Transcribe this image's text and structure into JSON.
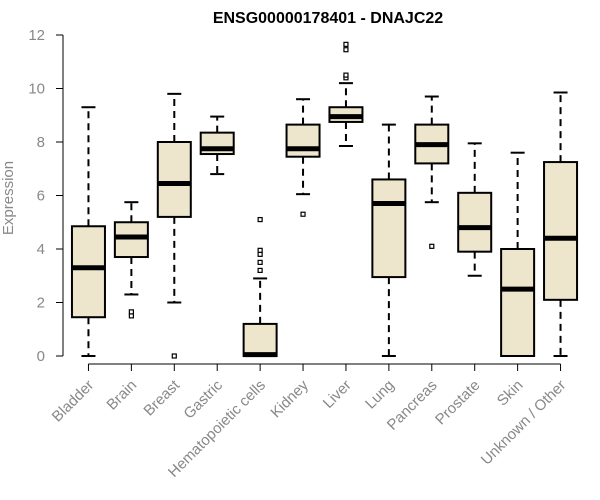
{
  "chart_data": {
    "type": "boxplot",
    "title": "ENSG00000178401 - DNAJC22",
    "xlabel": "",
    "ylabel": "Expression",
    "ylim": [
      0,
      12
    ],
    "yticks": [
      0,
      2,
      4,
      6,
      8,
      10,
      12
    ],
    "grid": false,
    "colors": {
      "box_fill": "#ede6cc",
      "box_stroke": "#000000",
      "axis": "#000000",
      "tick_text": "#888888",
      "title": "#000000"
    },
    "categories": [
      "Bladder",
      "Brain",
      "Breast",
      "Gastric",
      "Hematopoietic cells",
      "Kidney",
      "Liver",
      "Lung",
      "Pancreas",
      "Prostate",
      "Skin",
      "Unknown / Other"
    ],
    "boxes": [
      {
        "category": "Bladder",
        "whisker_low": 0.0,
        "q1": 1.45,
        "median": 3.3,
        "q3": 4.85,
        "whisker_high": 9.3,
        "outliers": []
      },
      {
        "category": "Brain",
        "whisker_low": 2.3,
        "q1": 3.7,
        "median": 4.45,
        "q3": 5.0,
        "whisker_high": 5.75,
        "outliers": [
          1.5,
          1.65
        ]
      },
      {
        "category": "Breast",
        "whisker_low": 2.0,
        "q1": 5.2,
        "median": 6.45,
        "q3": 8.0,
        "whisker_high": 9.8,
        "outliers": [
          0.0
        ]
      },
      {
        "category": "Gastric",
        "whisker_low": 6.8,
        "q1": 7.55,
        "median": 7.75,
        "q3": 8.35,
        "whisker_high": 8.95,
        "outliers": []
      },
      {
        "category": "Hematopoietic cells",
        "whisker_low": 0.0,
        "q1": 0.0,
        "median": 0.05,
        "q3": 1.2,
        "whisker_high": 2.9,
        "outliers": [
          3.2,
          3.5,
          3.8,
          3.95,
          5.1
        ]
      },
      {
        "category": "Kidney",
        "whisker_low": 6.05,
        "q1": 7.45,
        "median": 7.75,
        "q3": 8.65,
        "whisker_high": 9.6,
        "outliers": [
          5.3
        ]
      },
      {
        "category": "Liver",
        "whisker_low": 7.85,
        "q1": 8.75,
        "median": 8.95,
        "q3": 9.3,
        "whisker_high": 10.2,
        "outliers": [
          10.4,
          10.5,
          11.45,
          11.65
        ]
      },
      {
        "category": "Lung",
        "whisker_low": 0.0,
        "q1": 2.95,
        "median": 5.7,
        "q3": 6.6,
        "whisker_high": 8.65,
        "outliers": []
      },
      {
        "category": "Pancreas",
        "whisker_low": 5.75,
        "q1": 7.2,
        "median": 7.9,
        "q3": 8.65,
        "whisker_high": 9.7,
        "outliers": [
          4.1
        ]
      },
      {
        "category": "Prostate",
        "whisker_low": 3.0,
        "q1": 3.9,
        "median": 4.8,
        "q3": 6.1,
        "whisker_high": 7.95,
        "outliers": []
      },
      {
        "category": "Skin",
        "whisker_low": 0.0,
        "q1": 0.0,
        "median": 2.5,
        "q3": 4.0,
        "whisker_high": 7.6,
        "outliers": []
      },
      {
        "category": "Unknown / Other",
        "whisker_low": 0.0,
        "q1": 2.1,
        "median": 4.4,
        "q3": 7.25,
        "whisker_high": 9.85,
        "outliers": []
      }
    ]
  }
}
